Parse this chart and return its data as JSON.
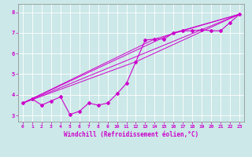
{
  "background_color": "#cce8e8",
  "grid_color": "#ffffff",
  "line_color": "#cc00cc",
  "xlabel": "Windchill (Refroidissement éolien,°C)",
  "xlim": [
    -0.5,
    23.5
  ],
  "ylim": [
    2.7,
    8.4
  ],
  "yticks": [
    3,
    4,
    5,
    6,
    7,
    8
  ],
  "xticks": [
    0,
    1,
    2,
    3,
    4,
    5,
    6,
    7,
    8,
    9,
    10,
    11,
    12,
    13,
    14,
    15,
    16,
    17,
    18,
    19,
    20,
    21,
    22,
    23
  ],
  "main_x": [
    0,
    1,
    2,
    3,
    4,
    5,
    6,
    7,
    8,
    9,
    10,
    11,
    12,
    13,
    14,
    15,
    16,
    17,
    18,
    19,
    20,
    21,
    22,
    23
  ],
  "main_y": [
    3.6,
    3.8,
    3.5,
    3.7,
    3.9,
    3.05,
    3.2,
    3.6,
    3.5,
    3.6,
    4.05,
    4.55,
    5.6,
    6.65,
    6.7,
    6.7,
    7.0,
    7.1,
    7.1,
    7.15,
    7.1,
    7.1,
    7.5,
    7.9
  ],
  "straight_lines": [
    {
      "x": [
        0,
        23
      ],
      "y": [
        3.6,
        7.9
      ]
    },
    {
      "x": [
        0,
        12,
        23
      ],
      "y": [
        3.6,
        5.6,
        7.9
      ]
    },
    {
      "x": [
        0,
        14,
        23
      ],
      "y": [
        3.6,
        6.7,
        7.9
      ]
    },
    {
      "x": [
        0,
        16,
        23
      ],
      "y": [
        3.6,
        7.0,
        7.9
      ]
    }
  ]
}
